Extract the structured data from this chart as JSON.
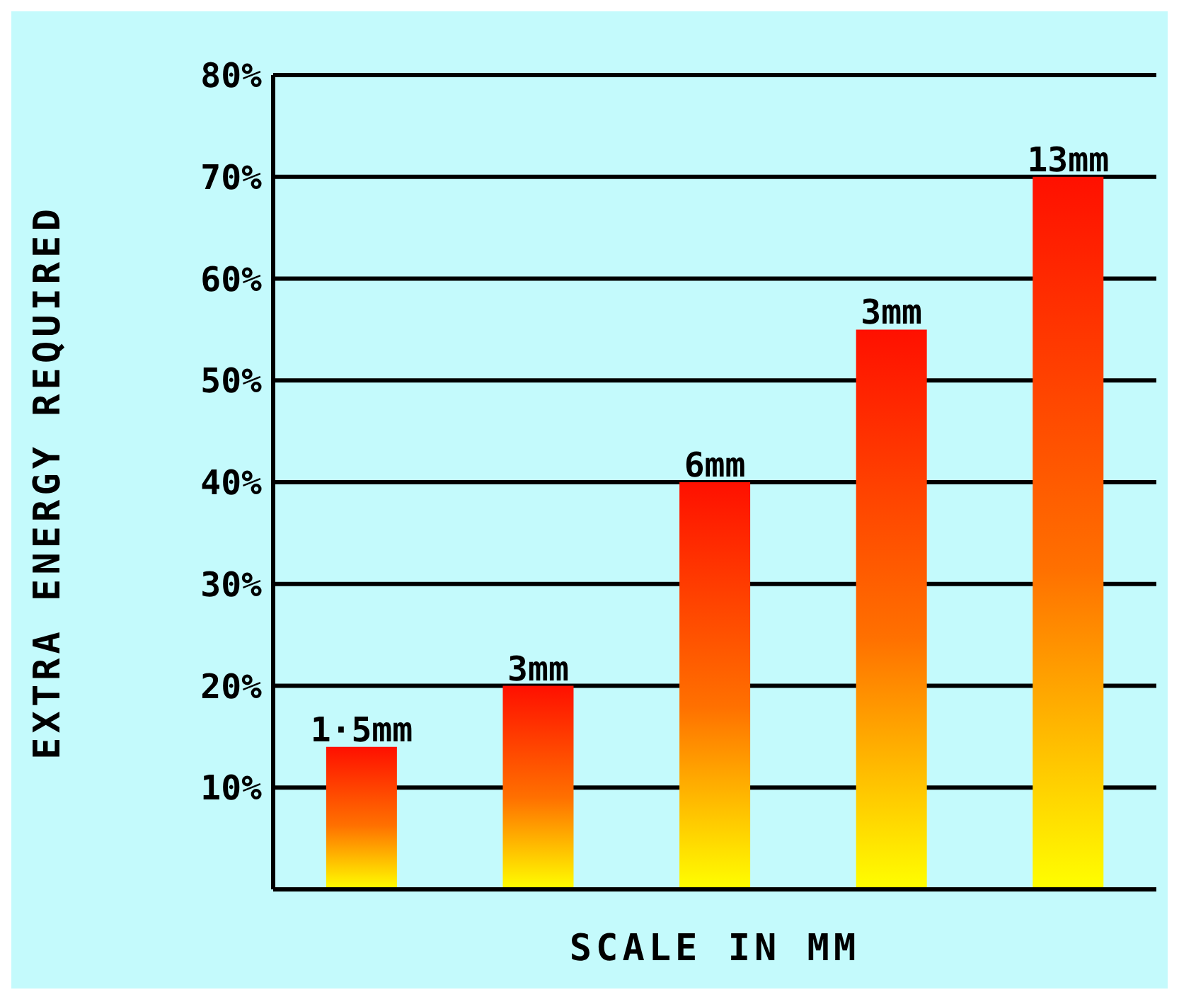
{
  "chart_data": {
    "type": "bar",
    "xlabel": "SCALE IN MM",
    "ylabel": "EXTRA ENERGY REQUIRED",
    "categories": [
      "1·5mm",
      "3mm",
      "6mm",
      "3mm",
      "13mm"
    ],
    "values": [
      14,
      20,
      40,
      55,
      70
    ],
    "color": "#ff1000",
    "ylim": [
      0,
      80
    ],
    "yticks": [
      {
        "value": 10,
        "label": "10%"
      },
      {
        "value": 20,
        "label": "20%"
      },
      {
        "value": 30,
        "label": "30%"
      },
      {
        "value": 40,
        "label": "40%"
      },
      {
        "value": 50,
        "label": "50%"
      },
      {
        "value": 60,
        "label": "60%"
      },
      {
        "value": 70,
        "label": "70%"
      },
      {
        "value": 80,
        "label": "80%"
      }
    ],
    "grid": "y"
  }
}
